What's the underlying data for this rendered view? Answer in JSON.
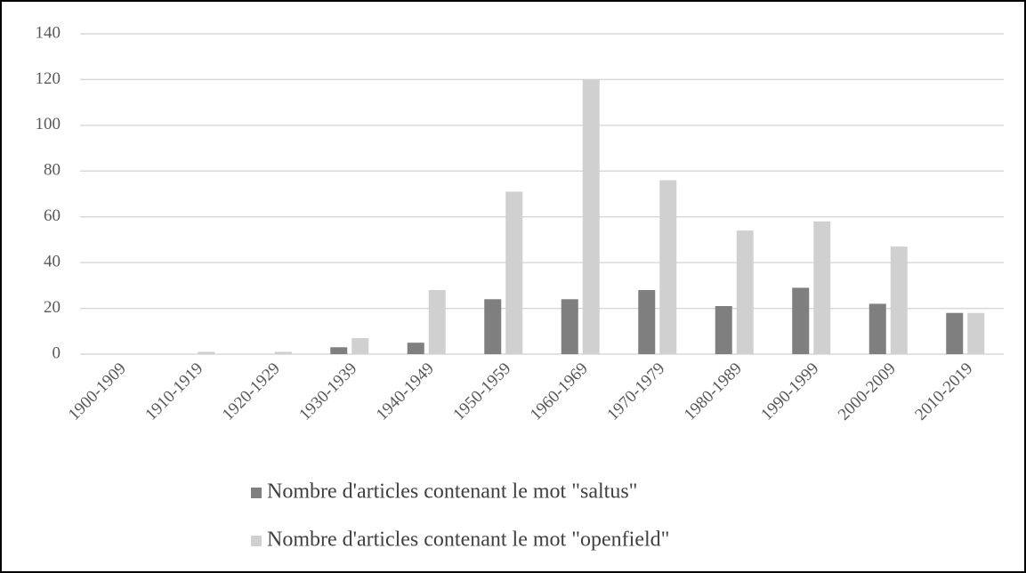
{
  "chart_data": {
    "type": "bar",
    "categories": [
      "1900-1909",
      "1910-1919",
      "1920-1929",
      "1930-1939",
      "1940-1949",
      "1950-1959",
      "1960-1969",
      "1970-1979",
      "1980-1989",
      "1990-1999",
      "2000-2009",
      "2010-2019"
    ],
    "series": [
      {
        "name": "Nombre d'articles contenant le mot \"saltus\"",
        "color": "#7f7f7f",
        "values": [
          0,
          0,
          0,
          3,
          5,
          24,
          24,
          28,
          21,
          29,
          22,
          18
        ]
      },
      {
        "name": "Nombre d'articles contenant le mot \"openfield\"",
        "color": "#d0d0d0",
        "values": [
          0,
          1,
          1,
          7,
          28,
          71,
          120,
          76,
          54,
          58,
          47,
          18
        ]
      }
    ],
    "ylim": [
      0,
      140
    ],
    "yticks": [
      0,
      20,
      40,
      60,
      80,
      100,
      120,
      140
    ],
    "grid": true,
    "legend": "bottom"
  }
}
